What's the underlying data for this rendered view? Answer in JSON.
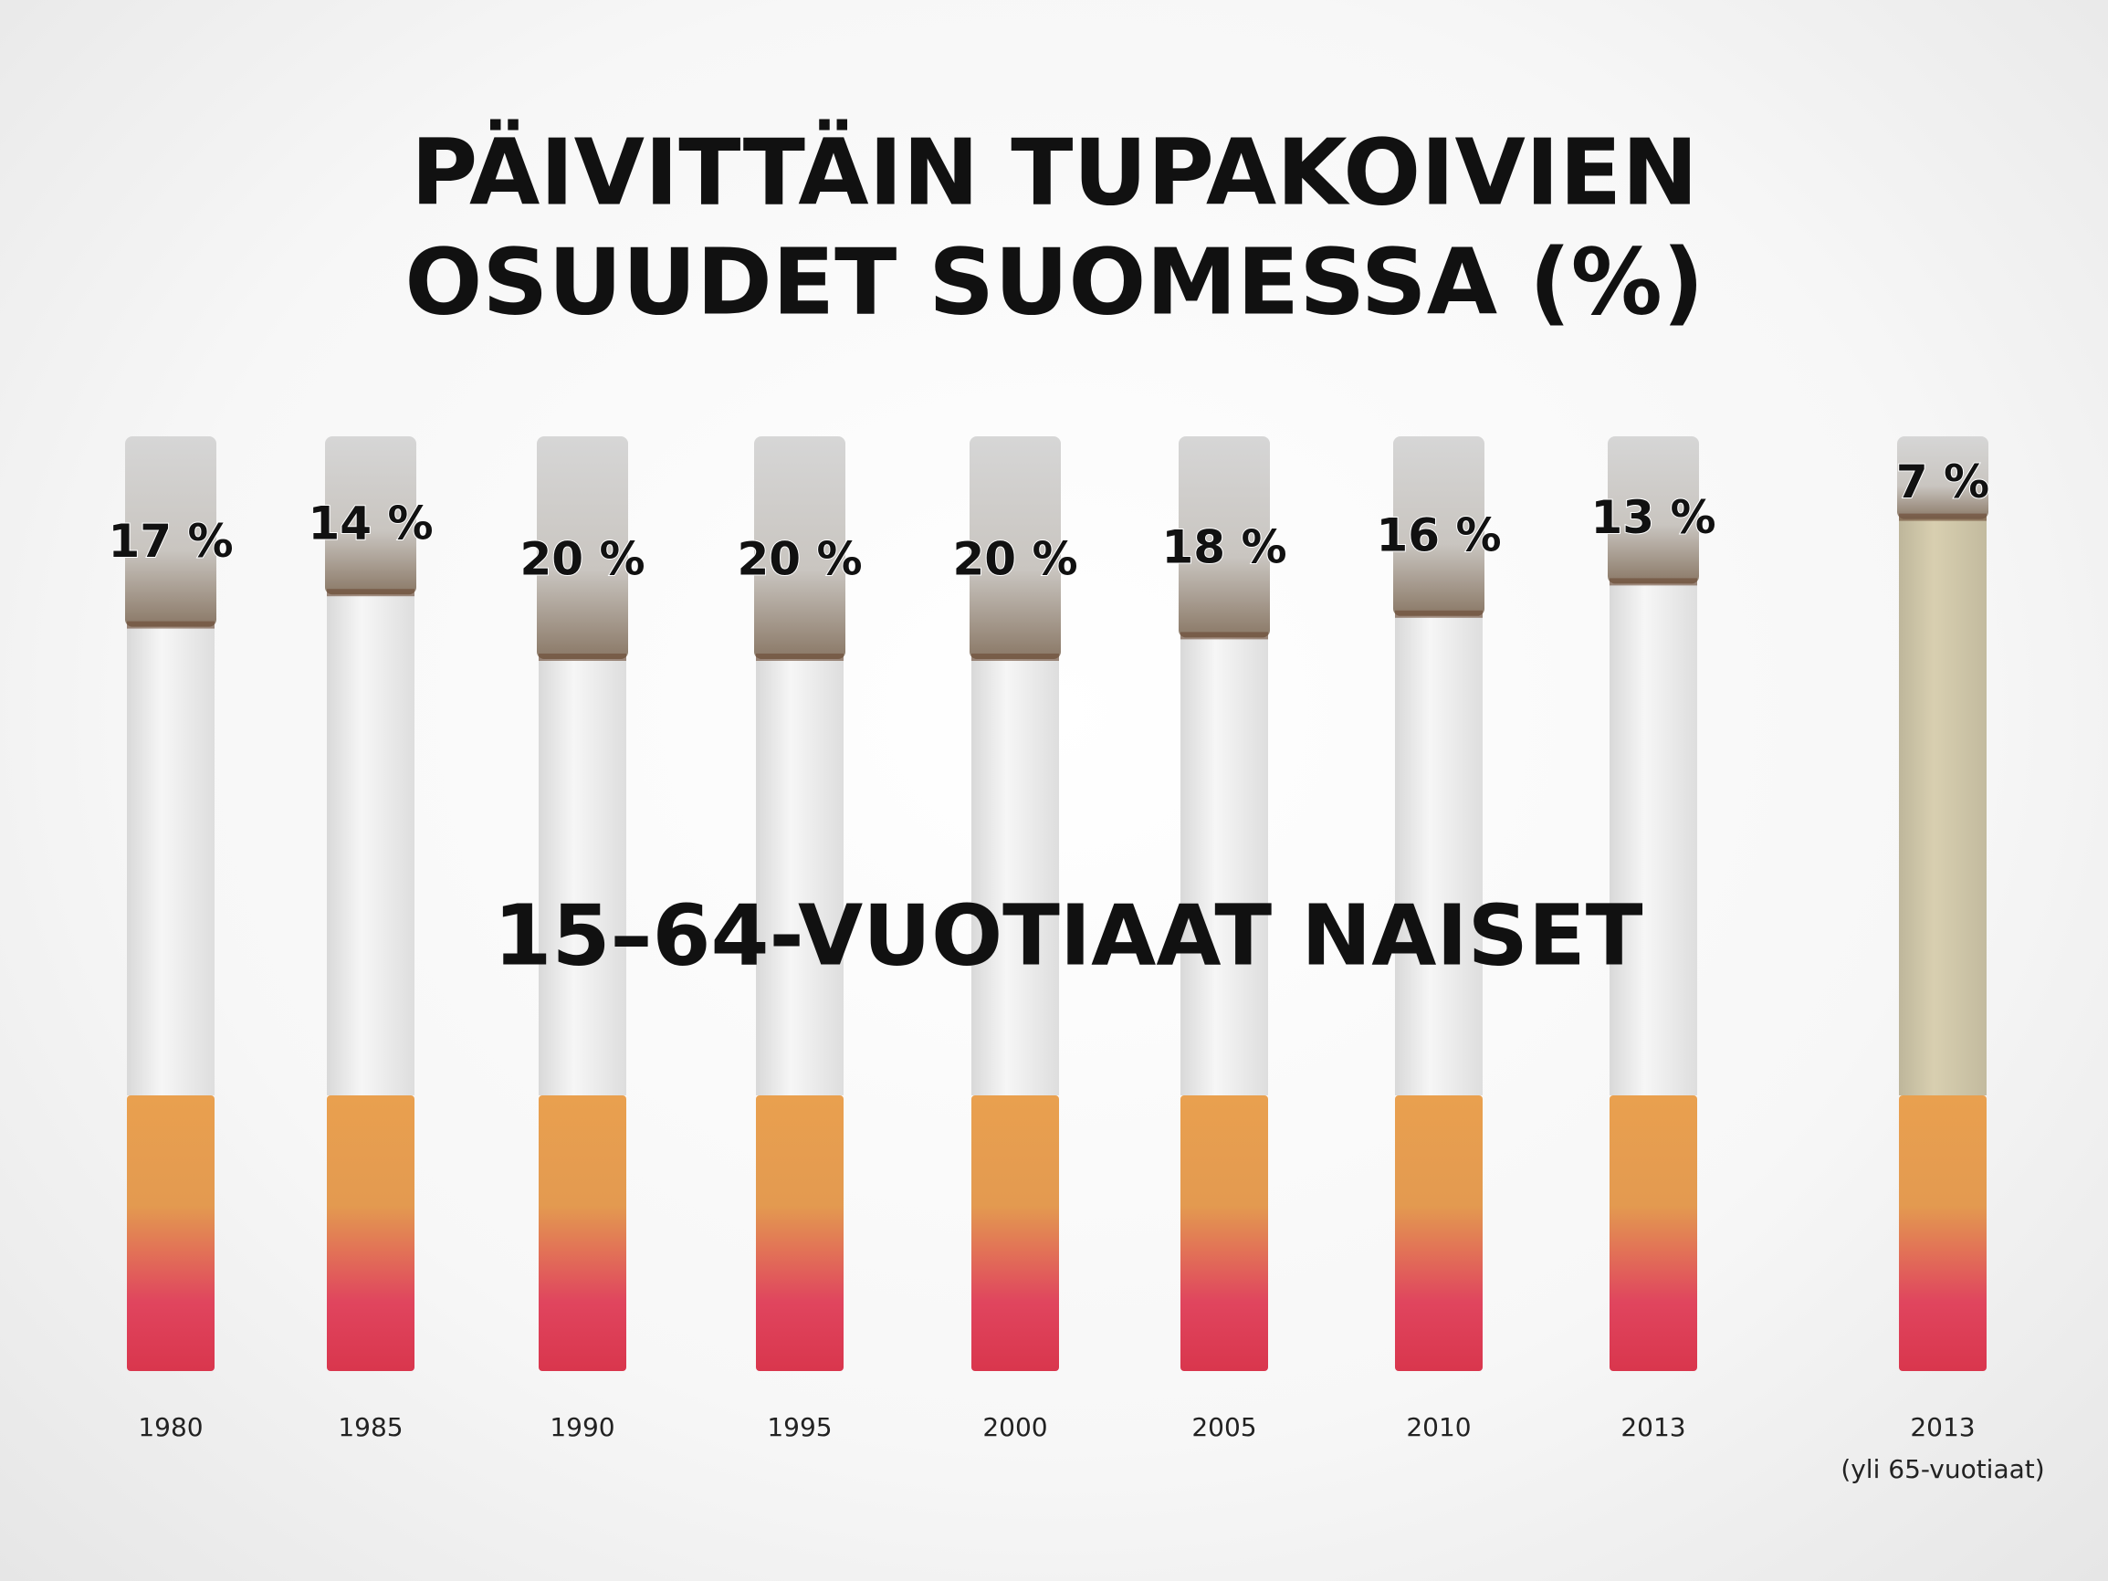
{
  "chart_data": {
    "type": "cigarette",
    "title": "PÄIVITTÄIN TUPAKOIVIEN",
    "subtitle": "OSUUDET SUOMESSA (%)",
    "annotation": "15–64-VUOTIAAT NAISET",
    "categories": [
      "1980",
      "1985",
      "1990",
      "1995",
      "2000",
      "2005",
      "2010",
      "2013",
      "2013\n(yli 65-vuotiaat)"
    ],
    "values": [
      17,
      14,
      20,
      20,
      20,
      18,
      16,
      13,
      7
    ],
    "value_labels": [
      "17 %",
      "14 %",
      "20 %",
      "20 %",
      "20 %",
      "18 %",
      "16 %",
      "13 %",
      "7 %"
    ],
    "colors": [
      "#f6f6f6",
      "#f6f6f6",
      "#f6f6f6",
      "#f6f6f6",
      "#f6f6f6",
      "#f6f6f6",
      "#f6f6f6",
      "#f6f6f6",
      "#d8cfb0"
    ]
  }
}
